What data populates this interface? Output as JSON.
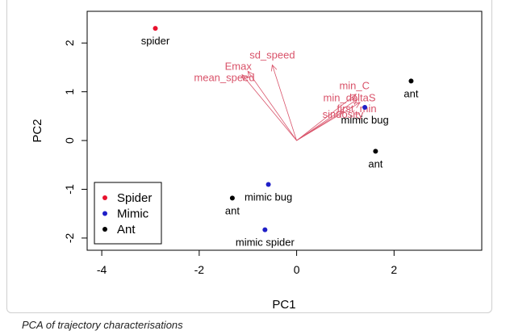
{
  "caption": "PCA of trajectory characterisations",
  "chart_data": {
    "type": "scatter",
    "title": "",
    "xlabel": "PC1",
    "ylabel": "PC2",
    "xlim": [
      -4.3,
      3.8
    ],
    "ylim": [
      -2.25,
      2.65
    ],
    "x_ticks": [
      "-4",
      "-2",
      "0",
      "2"
    ],
    "y_ticks": [
      "-2",
      "-1",
      "0",
      "1",
      "2"
    ],
    "grid": false,
    "legend": {
      "placement": "bottom-left",
      "entries": [
        {
          "label": "Spider",
          "color": "#e8112d"
        },
        {
          "label": "Mimic",
          "color": "#1f1fc7"
        },
        {
          "label": "Ant",
          "color": "#000000"
        }
      ]
    },
    "points": [
      {
        "label": "spider",
        "group": "Spider",
        "x": -2.9,
        "y": 2.3
      },
      {
        "label": "ant",
        "group": "Ant",
        "x": 2.35,
        "y": 1.22
      },
      {
        "label": "mimic bug",
        "group": "Mimic",
        "x": 1.4,
        "y": 0.68
      },
      {
        "label": "ant",
        "group": "Ant",
        "x": 1.62,
        "y": -0.22
      },
      {
        "label": "mimic bug",
        "group": "Mimic",
        "x": -0.58,
        "y": -0.9
      },
      {
        "label": "ant",
        "group": "Ant",
        "x": -1.32,
        "y": -1.18
      },
      {
        "label": "mimic spider",
        "group": "Mimic",
        "x": -0.65,
        "y": -1.83
      }
    ],
    "loadings_color": "#d9536a",
    "loadings": [
      {
        "label": "sd_speed",
        "x": -0.5,
        "y": 1.55
      },
      {
        "label": "Emax",
        "x": -1.0,
        "y": 1.42
      },
      {
        "label": "mean_speed",
        "x": -1.12,
        "y": 1.35
      },
      {
        "label": "min_C",
        "x": 1.22,
        "y": 0.95
      },
      {
        "label": "min_deltaS",
        "x": 1.25,
        "y": 0.85
      },
      {
        "label": "first_min",
        "x": 1.3,
        "y": 0.78
      },
      {
        "label": "sinuosity",
        "x": 0.95,
        "y": 0.6
      }
    ]
  }
}
